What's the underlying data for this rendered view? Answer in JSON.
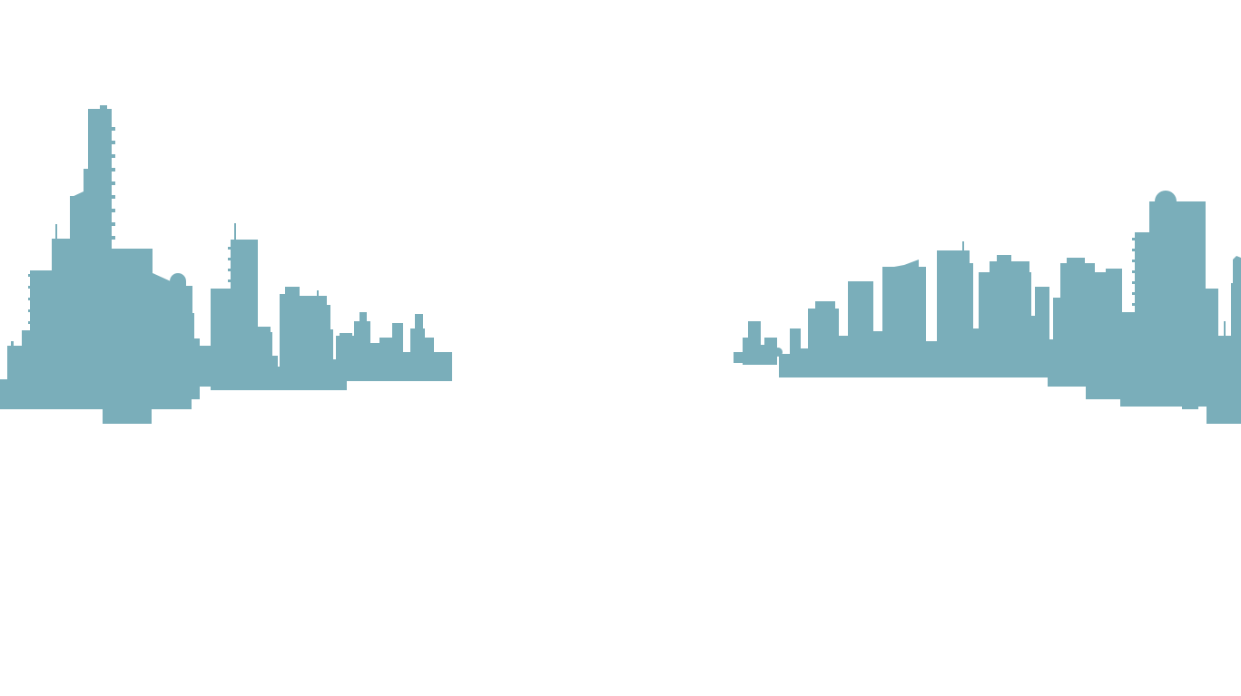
{
  "page": {
    "background_color": "#ffffff"
  },
  "skyline": {
    "silhouette_color": "#7aaeba",
    "left_group": "city-skyline-left",
    "right_group": "city-skyline-right"
  }
}
